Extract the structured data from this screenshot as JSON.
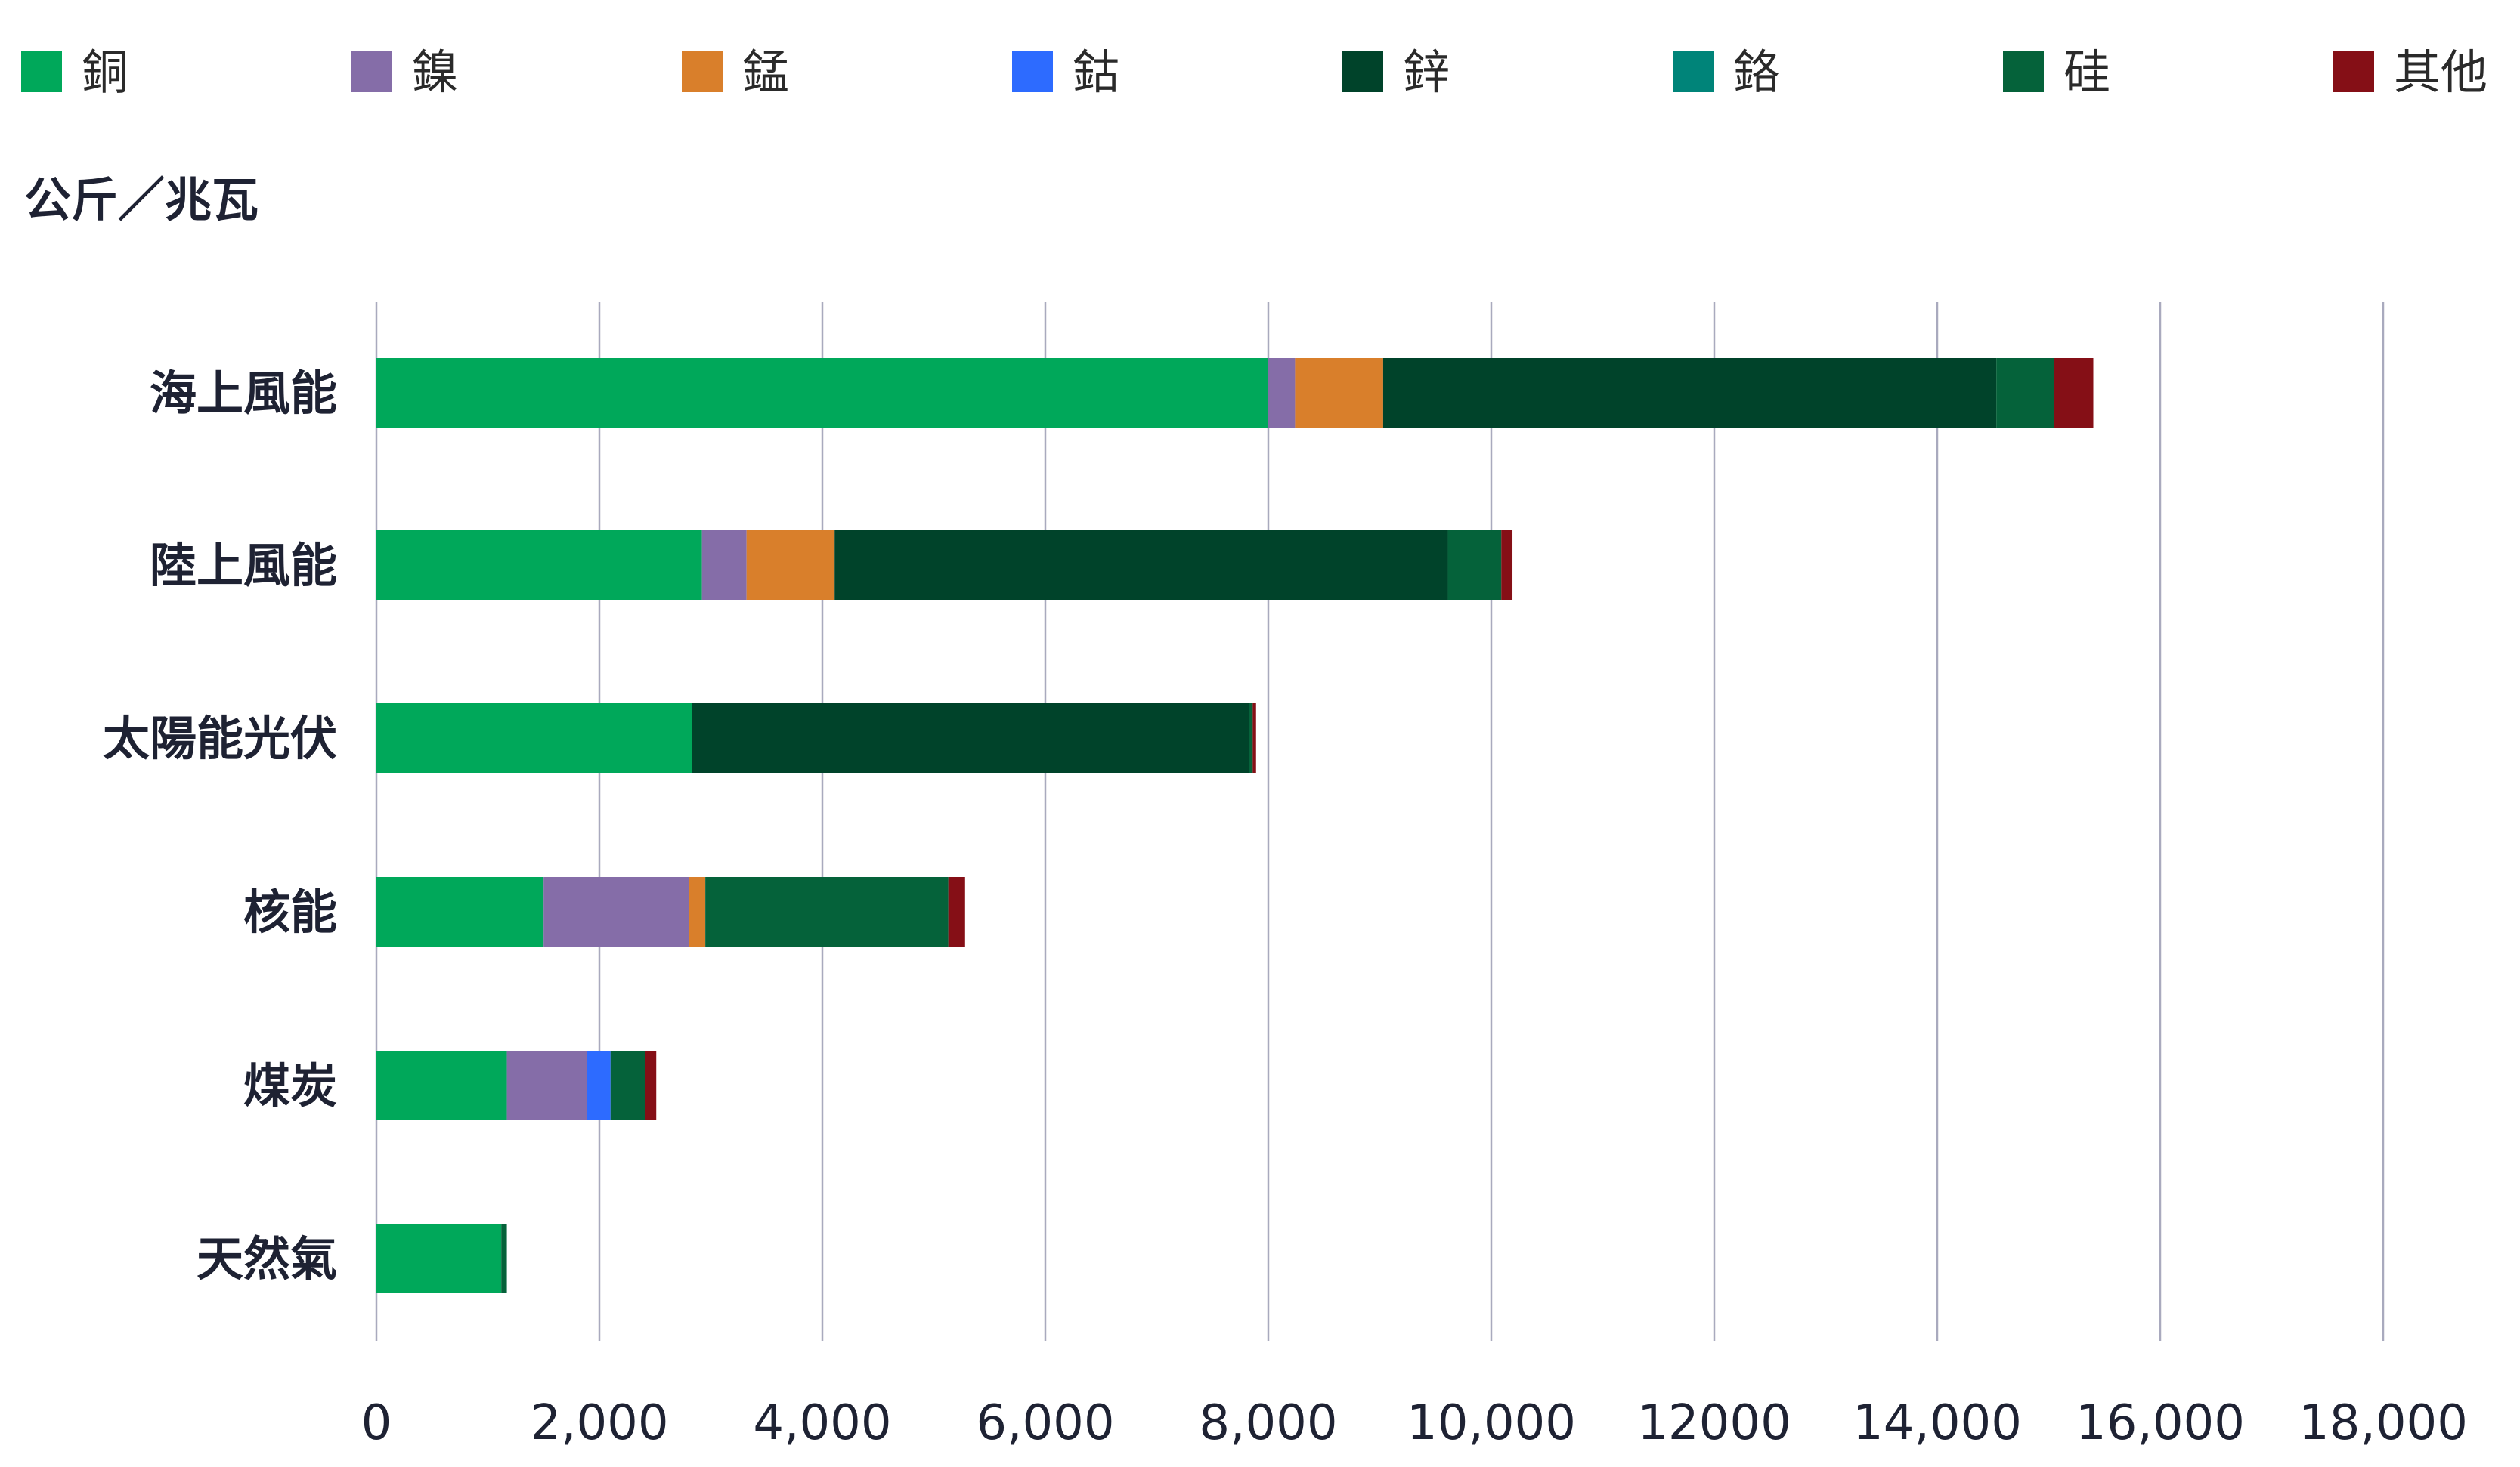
{
  "chart_data": {
    "type": "bar",
    "orientation": "horizontal",
    "stacked": true,
    "unit_label": "公斤／兆瓦",
    "categories": [
      "海上風能",
      "陸上風能",
      "太陽能光伏",
      "核能",
      "煤炭",
      "天然氣"
    ],
    "series": [
      {
        "name": "銅",
        "color": "#00A85A",
        "values": [
          8000,
          2920,
          2830,
          1500,
          1170,
          1120
        ]
      },
      {
        "name": "鎳",
        "color": "#856DA8",
        "values": [
          240,
          400,
          0,
          1300,
          720,
          0
        ]
      },
      {
        "name": "錳",
        "color": "#D97F2B",
        "values": [
          790,
          790,
          0,
          150,
          0,
          0
        ]
      },
      {
        "name": "鈷",
        "color": "#2D6BFF",
        "values": [
          0,
          0,
          0,
          0,
          210,
          0
        ]
      },
      {
        "name": "鋅",
        "color": "#00432A",
        "values": [
          5500,
          5500,
          5000,
          0,
          0,
          0
        ]
      },
      {
        "name": "鉻",
        "color": "#008479",
        "values": [
          0,
          0,
          0,
          0,
          0,
          0
        ]
      },
      {
        "name": "硅",
        "color": "#05623A",
        "values": [
          520,
          480,
          30,
          2180,
          310,
          50
        ]
      },
      {
        "name": "其他",
        "color": "#850F16",
        "values": [
          350,
          100,
          30,
          150,
          100,
          0
        ]
      }
    ],
    "ticks": [
      {
        "value": 0,
        "label": "0"
      },
      {
        "value": 2000,
        "label": "2,000"
      },
      {
        "value": 4000,
        "label": "4,000"
      },
      {
        "value": 6000,
        "label": "6,000"
      },
      {
        "value": 8000,
        "label": "8,000"
      },
      {
        "value": 10000,
        "label": "10,000"
      },
      {
        "value": 12000,
        "label": "12000"
      },
      {
        "value": 14000,
        "label": "14,000"
      },
      {
        "value": 16000,
        "label": "16,000"
      },
      {
        "value": 18000,
        "label": "18,000"
      }
    ],
    "xlim": [
      0,
      18000
    ],
    "grid": true,
    "legend_position": "top"
  }
}
